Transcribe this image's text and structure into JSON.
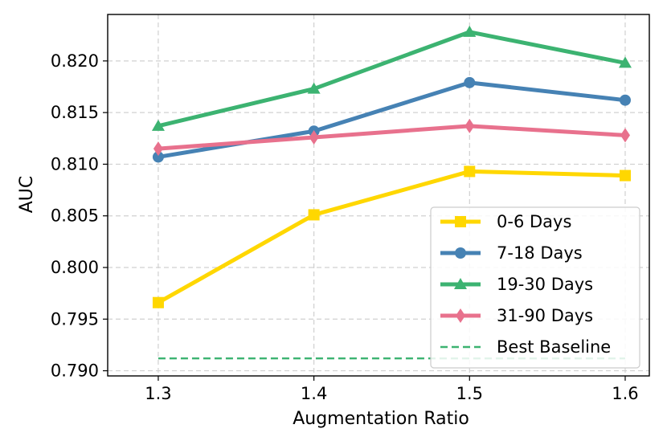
{
  "chart_data": {
    "type": "line",
    "title": "",
    "xlabel": "Augmentation Ratio",
    "ylabel": "AUC",
    "x": [
      1.3,
      1.4,
      1.5,
      1.6
    ],
    "x_tick_labels": [
      "1.3",
      "1.4",
      "1.5",
      "1.6"
    ],
    "xlim": [
      1.2675,
      1.6155
    ],
    "ylim": [
      0.7895,
      0.8245
    ],
    "y_ticks": [
      0.79,
      0.795,
      0.8,
      0.805,
      0.81,
      0.815,
      0.82
    ],
    "y_tick_labels": [
      "0.790",
      "0.795",
      "0.800",
      "0.805",
      "0.810",
      "0.815",
      "0.820"
    ],
    "grid": true,
    "legend_position": "lower-right",
    "series": [
      {
        "name": "0-6 Days",
        "values": [
          0.7966,
          0.8051,
          0.8093,
          0.8089
        ],
        "color": "#FFD700",
        "marker": "square"
      },
      {
        "name": "7-18 Days",
        "values": [
          0.8107,
          0.8132,
          0.8179,
          0.8162
        ],
        "color": "#4682B4",
        "marker": "circle"
      },
      {
        "name": "19-30 Days",
        "values": [
          0.8137,
          0.8173,
          0.8228,
          0.8198
        ],
        "color": "#3CB371",
        "marker": "triangle"
      },
      {
        "name": "31-90 Days",
        "values": [
          0.8115,
          0.8126,
          0.8137,
          0.8128
        ],
        "color": "#E8718D",
        "marker": "diamond"
      }
    ],
    "baseline": {
      "name": "Best Baseline",
      "value": 0.7912,
      "color": "#3CB371",
      "style": "dashed"
    }
  }
}
